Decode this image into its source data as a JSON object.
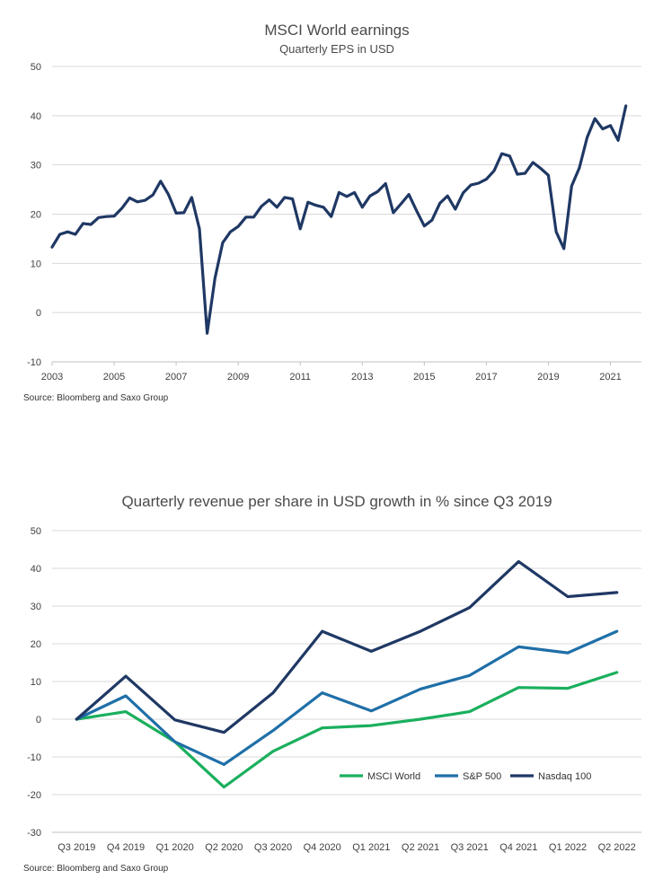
{
  "chart_data": [
    {
      "type": "line",
      "title": "MSCI World earnings",
      "subtitle": "Quarterly EPS in USD",
      "ylim": [
        -10,
        50
      ],
      "y_ticks": [
        "50",
        "40",
        "30",
        "20",
        "10",
        "0",
        "-10"
      ],
      "x_ticks": [
        "2003",
        "2005",
        "2007",
        "2009",
        "2011",
        "2013",
        "2015",
        "2017",
        "2019",
        "2021"
      ],
      "xlim": [
        2003,
        2022
      ],
      "grid": true,
      "source": "Source: Bloomberg and Saxo Group",
      "colors": {
        "line": "#1f3864"
      },
      "series": [
        {
          "x": [
            2003.0,
            2003.25,
            2003.5,
            2003.75,
            2004.0,
            2004.25,
            2004.5,
            2004.75,
            2005.0,
            2005.25,
            2005.5,
            2005.75,
            2006.0,
            2006.25,
            2006.5,
            2006.75,
            2007.0,
            2007.25,
            2007.5,
            2007.75,
            2008.0,
            2008.25,
            2008.5,
            2008.75,
            2009.0,
            2009.25,
            2009.5,
            2009.75,
            2010.0,
            2010.25,
            2010.5,
            2010.75,
            2011.0,
            2011.25,
            2011.5,
            2011.75,
            2012.0,
            2012.25,
            2012.5,
            2012.75,
            2013.0,
            2013.25,
            2013.5,
            2013.75,
            2014.0,
            2014.25,
            2014.5,
            2014.75,
            2015.0,
            2015.25,
            2015.5,
            2015.75,
            2016.0,
            2016.25,
            2016.5,
            2016.75,
            2017.0,
            2017.25,
            2017.5,
            2017.75,
            2018.0,
            2018.25,
            2018.5,
            2018.75,
            2019.0,
            2019.25,
            2019.5,
            2019.75,
            2020.0,
            2020.25,
            2020.5,
            2020.75,
            2021.0,
            2021.25,
            2021.5
          ],
          "values": [
            13.3,
            15.9,
            16.4,
            15.9,
            18.1,
            17.9,
            19.3,
            19.5,
            19.6,
            21.2,
            23.3,
            22.5,
            22.8,
            23.9,
            26.7,
            24.0,
            20.2,
            20.3,
            23.4,
            17.0,
            -4.2,
            7.0,
            14.2,
            16.4,
            17.5,
            19.4,
            19.4,
            21.6,
            22.9,
            21.4,
            23.4,
            23.1,
            17.0,
            22.4,
            21.8,
            21.4,
            19.5,
            24.4,
            23.6,
            24.4,
            21.4,
            23.7,
            24.6,
            26.2,
            20.3,
            22.1,
            24.0,
            20.7,
            17.6,
            18.8,
            22.2,
            23.7,
            21.0,
            24.3,
            25.9,
            26.3,
            27.1,
            28.8,
            32.3,
            31.8,
            28.1,
            28.3,
            30.5,
            29.3,
            27.9,
            16.4,
            13.0,
            25.7,
            29.4,
            35.6,
            39.4,
            37.3,
            38.0,
            35.0,
            42.0
          ]
        }
      ]
    },
    {
      "type": "line",
      "title": "Quarterly revenue per share in USD growth in % since Q3 2019",
      "ylim": [
        -30,
        50
      ],
      "y_ticks": [
        "50",
        "40",
        "30",
        "20",
        "10",
        "0",
        "-10",
        "-20",
        "-30"
      ],
      "categories": [
        "Q3 2019",
        "Q4 2019",
        "Q1 2020",
        "Q2 2020",
        "Q3 2020",
        "Q4 2020",
        "Q1 2021",
        "Q2 2021",
        "Q3 2021",
        "Q4 2021",
        "Q1 2022",
        "Q2 2022"
      ],
      "grid": true,
      "legend": "bottom-right",
      "source": "Source: Bloomberg and Saxo Group",
      "series": [
        {
          "name": "MSCI World",
          "color": "#1aaf5d",
          "values": [
            0,
            2,
            -6,
            -18,
            -8.5,
            -2.3,
            -1.7,
            0,
            2,
            8.4,
            8.2,
            12.4
          ]
        },
        {
          "name": "S&P 500",
          "color": "#1f6fa8",
          "values": [
            0,
            6.2,
            -6,
            -12,
            -3,
            7,
            2.2,
            8,
            11.6,
            19.2,
            17.6,
            23.3
          ]
        },
        {
          "name": "Nasdaq 100",
          "color": "#1f3864",
          "values": [
            0,
            11.4,
            -0.2,
            -3.5,
            7,
            23.3,
            18,
            23.3,
            29.6,
            41.8,
            32.5,
            33.6
          ]
        }
      ]
    }
  ]
}
